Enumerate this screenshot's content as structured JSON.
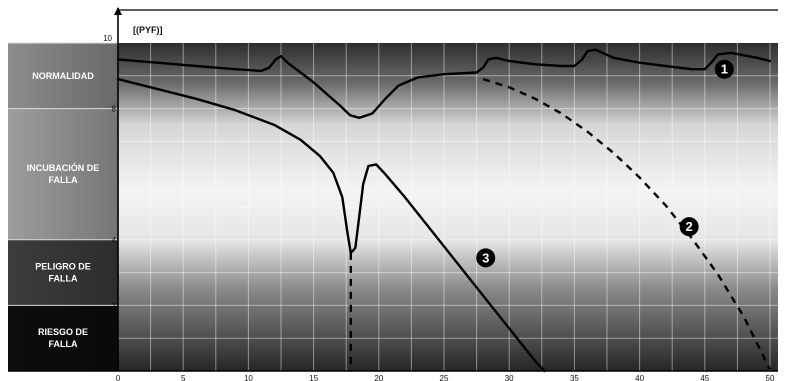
{
  "chart_data": {
    "type": "line",
    "ylabel": "[(PYF)]",
    "xlim": [
      0,
      50
    ],
    "ylim": [
      0,
      10
    ],
    "x_ticks": [
      0,
      5,
      10,
      15,
      20,
      25,
      30,
      35,
      40,
      45,
      50
    ],
    "y_ticks": [
      2,
      4,
      8,
      10
    ],
    "x_grid_step": 2.5,
    "y_grid_step": 1,
    "grid": true,
    "bands": [
      {
        "label_lines": [
          "NORMALIDAD"
        ],
        "y_from": 8,
        "y_to": 10,
        "color": "#8c8c8c"
      },
      {
        "label_lines": [
          "INCUBACIÓN DE",
          "FALLA"
        ],
        "y_from": 4,
        "y_to": 8,
        "color": "#9d9d9d"
      },
      {
        "label_lines": [
          "PELIGRO DE",
          "FALLA"
        ],
        "y_from": 2,
        "y_to": 4,
        "color": "#3c3c3c"
      },
      {
        "label_lines": [
          "RIESGO DE",
          "FALLA"
        ],
        "y_from": 0,
        "y_to": 2,
        "color": "#0d0d0d"
      }
    ],
    "series": [
      {
        "label": "1",
        "style": "solid",
        "points": [
          [
            0,
            9.5
          ],
          [
            3,
            9.4
          ],
          [
            6,
            9.3
          ],
          [
            9,
            9.2
          ],
          [
            11,
            9.15
          ],
          [
            11.6,
            9.25
          ],
          [
            12.1,
            9.5
          ],
          [
            12.5,
            9.6
          ],
          [
            13,
            9.4
          ],
          [
            14,
            9.1
          ],
          [
            15,
            8.8
          ],
          [
            16,
            8.45
          ],
          [
            17,
            8.1
          ],
          [
            17.8,
            7.8
          ],
          [
            18.5,
            7.72
          ],
          [
            19.5,
            7.85
          ],
          [
            20.5,
            8.3
          ],
          [
            21.5,
            8.7
          ],
          [
            23,
            8.95
          ],
          [
            25,
            9.05
          ],
          [
            27.5,
            9.1
          ],
          [
            28,
            9.25
          ],
          [
            28.4,
            9.5
          ],
          [
            29,
            9.55
          ],
          [
            30,
            9.45
          ],
          [
            32,
            9.35
          ],
          [
            34,
            9.3
          ],
          [
            35,
            9.3
          ],
          [
            35.6,
            9.5
          ],
          [
            36,
            9.75
          ],
          [
            36.6,
            9.8
          ],
          [
            38,
            9.55
          ],
          [
            40,
            9.4
          ],
          [
            42,
            9.3
          ],
          [
            44,
            9.2
          ],
          [
            45,
            9.2
          ],
          [
            45.5,
            9.4
          ],
          [
            46,
            9.65
          ],
          [
            47,
            9.7
          ],
          [
            49,
            9.55
          ],
          [
            50,
            9.45
          ]
        ],
        "label_at": [
          46.5,
          9.2
        ]
      },
      {
        "label": "2",
        "style": "dashed",
        "points": [
          [
            28,
            8.9
          ],
          [
            30,
            8.65
          ],
          [
            32,
            8.3
          ],
          [
            34,
            7.85
          ],
          [
            36,
            7.3
          ],
          [
            38,
            6.65
          ],
          [
            40,
            5.9
          ],
          [
            42,
            5.05
          ],
          [
            44,
            4.05
          ],
          [
            46,
            2.95
          ],
          [
            48,
            1.65
          ],
          [
            50,
            0.05
          ]
        ],
        "label_at": [
          43.8,
          4.4
        ]
      },
      {
        "label": "3",
        "style": "solid",
        "points": [
          [
            0,
            8.9
          ],
          [
            3,
            8.6
          ],
          [
            6,
            8.3
          ],
          [
            9,
            7.95
          ],
          [
            12,
            7.5
          ],
          [
            14,
            7.05
          ],
          [
            15.5,
            6.55
          ],
          [
            16.5,
            6.05
          ],
          [
            17.2,
            5.3
          ],
          [
            17.6,
            4.2
          ],
          [
            17.85,
            3.6
          ],
          [
            18.2,
            3.75
          ],
          [
            18.5,
            4.7
          ],
          [
            18.8,
            5.7
          ],
          [
            19.2,
            6.25
          ],
          [
            19.8,
            6.3
          ],
          [
            20.5,
            6.0
          ],
          [
            22,
            5.3
          ],
          [
            24,
            4.3
          ],
          [
            26,
            3.3
          ],
          [
            28,
            2.3
          ],
          [
            30,
            1.3
          ],
          [
            32,
            0.3
          ],
          [
            32.7,
            0.0
          ]
        ],
        "label_at": [
          28.2,
          3.45
        ]
      },
      {
        "label": "",
        "style": "dashed",
        "points": [
          [
            17.85,
            3.6
          ],
          [
            17.85,
            0.0
          ]
        ],
        "label_at": null
      }
    ]
  }
}
